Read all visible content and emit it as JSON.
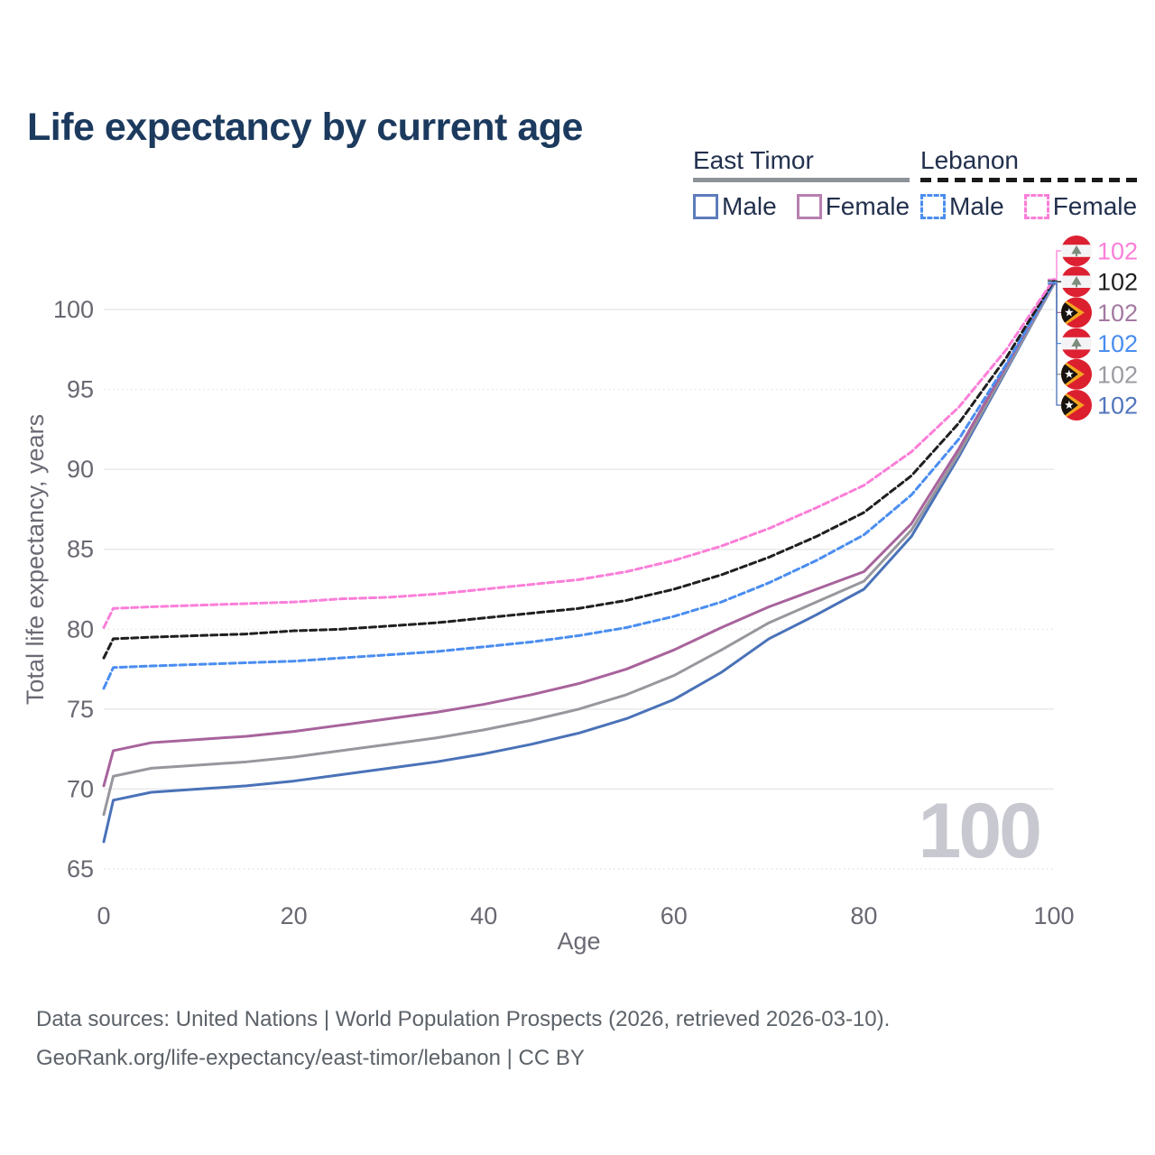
{
  "title": "Life expectancy by current age",
  "watermark": "100",
  "legend": {
    "groups": [
      {
        "name": "East Timor",
        "line_style": "solid",
        "underline_color": "#8e9399",
        "items": [
          {
            "label": "Male",
            "color": "#4a72b8",
            "dashed": false
          },
          {
            "label": "Female",
            "color": "#a8639c",
            "dashed": false
          }
        ]
      },
      {
        "name": "Lebanon",
        "line_style": "dashed",
        "underline_color": "#1a1a1a",
        "items": [
          {
            "label": "Male",
            "color": "#4a8df0",
            "dashed": true
          },
          {
            "label": "Female",
            "color": "#fb7ed8",
            "dashed": true
          }
        ]
      }
    ]
  },
  "icons": {
    "lebanon-flag-icon": "circular Lebanon flag: red-white-red horizontal bands with gray-green cedar",
    "east-timor-flag-icon": "circular East Timor flag: red field, yellow chevron, black triangle, white star"
  },
  "flag_colors": {
    "lebanon": {
      "red": "#dd2032",
      "white": "#f4f4f6",
      "cedar": "#7d8d7d"
    },
    "east_timor": {
      "red": "#dc1f2e",
      "yellow": "#f3a51f",
      "black": "#17120f",
      "star": "#ffffff"
    }
  },
  "footer": {
    "line1": "Data sources: United Nations | World Population Prospects (2026, retrieved 2026-03-10).",
    "line2": "GeoRank.org/life-expectancy/east-timor/lebanon | CC BY"
  },
  "chart_data": {
    "type": "line",
    "title": "Life expectancy by current age",
    "xlabel": "Age",
    "ylabel": "Total life expectancy, years",
    "xlim": [
      0,
      100
    ],
    "ylim": [
      65,
      102
    ],
    "x_ticks": [
      0,
      20,
      40,
      60,
      80,
      100
    ],
    "y_ticks": [
      65,
      70,
      75,
      80,
      85,
      90,
      95,
      100
    ],
    "dotted_gridlines": [
      65,
      80,
      95
    ],
    "grid": "horizontal-only",
    "legend_position": "top-right",
    "x": [
      0,
      1,
      5,
      10,
      15,
      20,
      25,
      30,
      35,
      40,
      45,
      50,
      55,
      60,
      65,
      70,
      75,
      80,
      85,
      90,
      95,
      100
    ],
    "series": [
      {
        "id": "east-timor-male",
        "name": "East Timor Male",
        "color": "#4a72b8",
        "dashed": false,
        "flag": "east-timor",
        "end_label": "102",
        "label_color": "#5276bd",
        "label_row": 5,
        "values": [
          66.7,
          69.3,
          69.8,
          70.0,
          70.2,
          70.5,
          70.9,
          71.3,
          71.7,
          72.2,
          72.8,
          73.5,
          74.4,
          75.6,
          77.3,
          79.4,
          80.9,
          82.5,
          85.8,
          90.8,
          96.2,
          101.6
        ]
      },
      {
        "id": "east-timor-total",
        "name": "East Timor",
        "color": "#97979d",
        "dashed": false,
        "flag": "east-timor",
        "end_label": "102",
        "label_color": "#9b9ba1",
        "label_row": 4,
        "values": [
          68.4,
          70.8,
          71.3,
          71.5,
          71.7,
          72.0,
          72.4,
          72.8,
          73.2,
          73.7,
          74.3,
          75.0,
          75.9,
          77.1,
          78.7,
          80.4,
          81.7,
          83.0,
          86.2,
          91.0,
          96.3,
          101.6
        ]
      },
      {
        "id": "east-timor-female",
        "name": "East Timor Female",
        "color": "#a8639c",
        "dashed": false,
        "flag": "east-timor",
        "end_label": "102",
        "label_color": "#a379a1",
        "label_row": 2,
        "values": [
          70.2,
          72.4,
          72.9,
          73.1,
          73.3,
          73.6,
          74.0,
          74.4,
          74.8,
          75.3,
          75.9,
          76.6,
          77.5,
          78.7,
          80.1,
          81.4,
          82.5,
          83.6,
          86.6,
          91.3,
          96.5,
          101.7
        ]
      },
      {
        "id": "lebanon-male",
        "name": "Lebanon Male",
        "color": "#4a8df0",
        "dashed": true,
        "flag": "lebanon",
        "end_label": "102",
        "label_color": "#4a8df0",
        "label_row": 3,
        "values": [
          76.3,
          77.6,
          77.7,
          77.8,
          77.9,
          78.0,
          78.2,
          78.4,
          78.6,
          78.9,
          79.2,
          79.6,
          80.1,
          80.8,
          81.7,
          82.9,
          84.3,
          85.9,
          88.4,
          91.9,
          96.6,
          101.7
        ]
      },
      {
        "id": "lebanon-total",
        "name": "Lebanon",
        "color": "#1f1f1f",
        "dashed": true,
        "flag": "lebanon",
        "end_label": "102",
        "label_color": "#1f1f1f",
        "label_row": 1,
        "values": [
          78.2,
          79.4,
          79.5,
          79.6,
          79.7,
          79.9,
          80.0,
          80.2,
          80.4,
          80.7,
          81.0,
          81.3,
          81.8,
          82.5,
          83.4,
          84.5,
          85.8,
          87.3,
          89.6,
          92.9,
          97.0,
          101.8
        ]
      },
      {
        "id": "lebanon-female",
        "name": "Lebanon Female",
        "color": "#fb7ed8",
        "dashed": true,
        "flag": "lebanon",
        "end_label": "102",
        "label_color": "#fb7ed8",
        "label_row": 0,
        "values": [
          80.1,
          81.3,
          81.4,
          81.5,
          81.6,
          81.7,
          81.9,
          82.0,
          82.2,
          82.5,
          82.8,
          83.1,
          83.6,
          84.3,
          85.2,
          86.3,
          87.6,
          89.0,
          91.1,
          93.9,
          97.5,
          101.9
        ]
      }
    ]
  }
}
